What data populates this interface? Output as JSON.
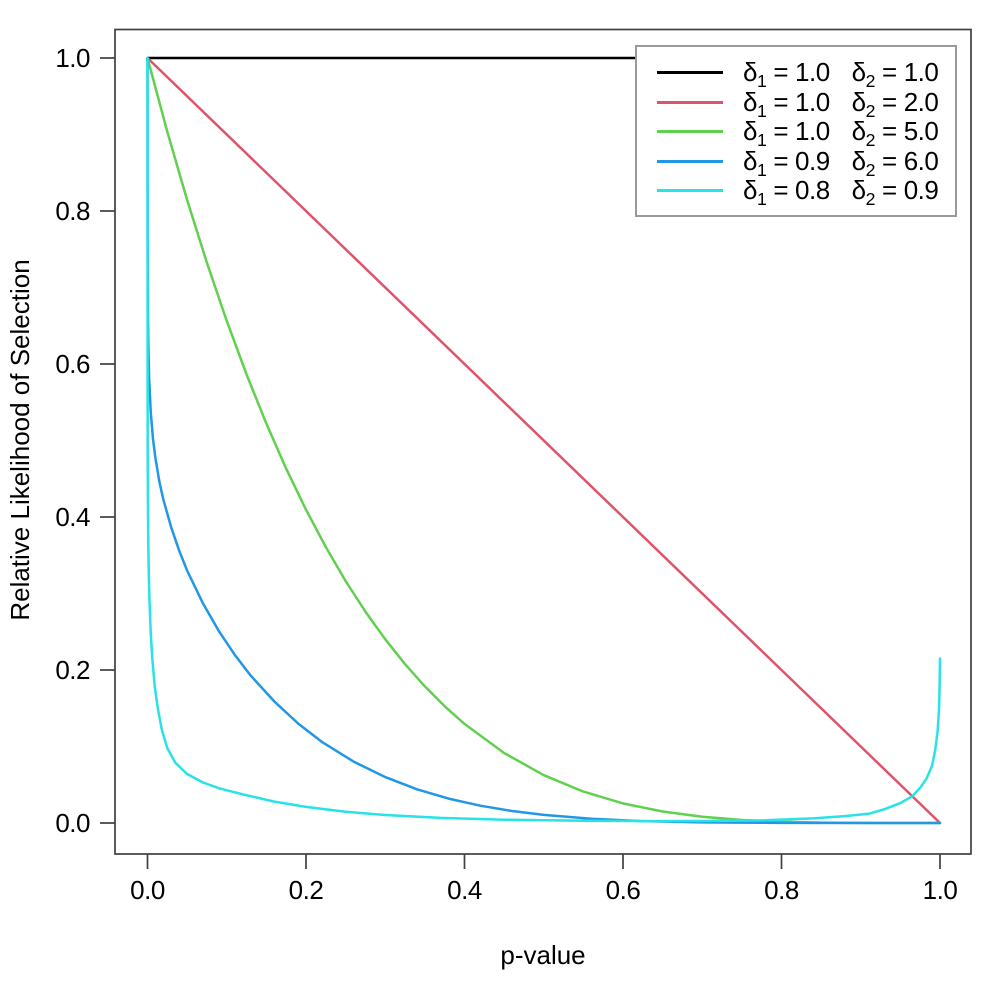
{
  "symbols": {
    "eq": "="
  },
  "chart_data": {
    "type": "line",
    "title": "",
    "xlabel": "p-value",
    "ylabel": "Relative Likelihood of Selection",
    "xlim": [
      0,
      1
    ],
    "ylim": [
      0,
      1
    ],
    "grid": false,
    "legend_position": "top-right",
    "x_ticks": {
      "values": [
        0.0,
        0.2,
        0.4,
        0.6,
        0.8,
        1.0
      ],
      "labels": [
        "0.0",
        "0.2",
        "0.4",
        "0.6",
        "0.8",
        "1.0"
      ]
    },
    "y_ticks": {
      "values": [
        0.0,
        0.2,
        0.4,
        0.6,
        0.8,
        1.0
      ],
      "labels": [
        "0.0",
        "0.2",
        "0.4",
        "0.6",
        "0.8",
        "1.0"
      ]
    },
    "series": [
      {
        "name": "delta1 = 1.0, delta2 = 1.0",
        "color": "#000000",
        "legend": {
          "param1": {
            "sym": "δ",
            "sub": "1",
            "value": "1.0"
          },
          "param2": {
            "sym": "δ",
            "sub": "2",
            "value": "1.0"
          }
        },
        "points": [
          [
            0,
            1.0
          ],
          [
            1,
            1.0
          ]
        ]
      },
      {
        "name": "delta1 = 1.0, delta2 = 2.0",
        "color": "#DF536B",
        "legend": {
          "param1": {
            "sym": "δ",
            "sub": "1",
            "value": "1.0"
          },
          "param2": {
            "sym": "δ",
            "sub": "2",
            "value": "2.0"
          }
        },
        "points": [
          [
            0,
            1.0
          ],
          [
            1,
            0.0
          ]
        ]
      },
      {
        "name": "delta1 = 1.0, delta2 = 5.0",
        "color": "#61D04F",
        "legend": {
          "param1": {
            "sym": "δ",
            "sub": "1",
            "value": "1.0"
          },
          "param2": {
            "sym": "δ",
            "sub": "2",
            "value": "5.0"
          }
        },
        "points": [
          [
            0.0,
            1.0
          ],
          [
            0.025,
            0.9037
          ],
          [
            0.05,
            0.8145
          ],
          [
            0.075,
            0.7324
          ],
          [
            0.1,
            0.6561
          ],
          [
            0.125,
            0.5862
          ],
          [
            0.15,
            0.522
          ],
          [
            0.175,
            0.4632
          ],
          [
            0.2,
            0.4096
          ],
          [
            0.225,
            0.3608
          ],
          [
            0.25,
            0.3164
          ],
          [
            0.275,
            0.2763
          ],
          [
            0.3,
            0.2401
          ],
          [
            0.325,
            0.2076
          ],
          [
            0.35,
            0.1785
          ],
          [
            0.375,
            0.1526
          ],
          [
            0.4,
            0.1296
          ],
          [
            0.45,
            0.0915
          ],
          [
            0.5,
            0.0625
          ],
          [
            0.55,
            0.041
          ],
          [
            0.6,
            0.0256
          ],
          [
            0.65,
            0.015
          ],
          [
            0.7,
            0.0081
          ],
          [
            0.75,
            0.0039
          ],
          [
            0.8,
            0.0016
          ],
          [
            0.85,
            0.0005
          ],
          [
            0.9,
            0.0001
          ],
          [
            0.95,
            0.0
          ],
          [
            1.0,
            0.0
          ]
        ]
      },
      {
        "name": "delta1 = 0.9, delta2 = 6.0",
        "color": "#2297E6",
        "legend": {
          "param1": {
            "sym": "δ",
            "sub": "1",
            "value": "0.9"
          },
          "param2": {
            "sym": "δ",
            "sub": "2",
            "value": "6.0"
          }
        },
        "points": [
          [
            0.0,
            1.0
          ],
          [
            0.0002,
            0.741
          ],
          [
            0.0005,
            0.675
          ],
          [
            0.001,
            0.628
          ],
          [
            0.002,
            0.583
          ],
          [
            0.004,
            0.538
          ],
          [
            0.007,
            0.502
          ],
          [
            0.01,
            0.477
          ],
          [
            0.015,
            0.446
          ],
          [
            0.02,
            0.423
          ],
          [
            0.03,
            0.386
          ],
          [
            0.04,
            0.356
          ],
          [
            0.05,
            0.33
          ],
          [
            0.07,
            0.287
          ],
          [
            0.09,
            0.251
          ],
          [
            0.11,
            0.22
          ],
          [
            0.13,
            0.193
          ],
          [
            0.16,
            0.159
          ],
          [
            0.19,
            0.13
          ],
          [
            0.22,
            0.106
          ],
          [
            0.26,
            0.0803
          ],
          [
            0.3,
            0.06
          ],
          [
            0.34,
            0.0441
          ],
          [
            0.38,
            0.0319
          ],
          [
            0.42,
            0.0226
          ],
          [
            0.46,
            0.0157
          ],
          [
            0.5,
            0.0106
          ],
          [
            0.56,
            0.0055
          ],
          [
            0.62,
            0.0026
          ],
          [
            0.7,
            0.0008
          ],
          [
            0.8,
            0.0001
          ],
          [
            0.9,
            0.0
          ],
          [
            1.0,
            0.0
          ]
        ]
      },
      {
        "name": "delta1 = 0.8, delta2 = 0.9",
        "color": "#28E2E5",
        "legend": {
          "param1": {
            "sym": "δ",
            "sub": "1",
            "value": "0.8"
          },
          "param2": {
            "sym": "δ",
            "sub": "2",
            "value": "0.9"
          }
        },
        "points": [
          [
            0.0,
            1.0
          ],
          [
            0.0001,
            0.6
          ],
          [
            0.0003,
            0.48
          ],
          [
            0.0006,
            0.41
          ],
          [
            0.001,
            0.365
          ],
          [
            0.0016,
            0.325
          ],
          [
            0.0025,
            0.29
          ],
          [
            0.004,
            0.25
          ],
          [
            0.006,
            0.215
          ],
          [
            0.009,
            0.18
          ],
          [
            0.013,
            0.15
          ],
          [
            0.018,
            0.122
          ],
          [
            0.025,
            0.098
          ],
          [
            0.035,
            0.079
          ],
          [
            0.05,
            0.064
          ],
          [
            0.07,
            0.053
          ],
          [
            0.09,
            0.0455
          ],
          [
            0.12,
            0.0375
          ],
          [
            0.16,
            0.028
          ],
          [
            0.2,
            0.021
          ],
          [
            0.25,
            0.0147
          ],
          [
            0.3,
            0.0105
          ],
          [
            0.37,
            0.0067
          ],
          [
            0.45,
            0.0043
          ],
          [
            0.55,
            0.003
          ],
          [
            0.63,
            0.0025
          ],
          [
            0.7,
            0.0026
          ],
          [
            0.78,
            0.0035
          ],
          [
            0.84,
            0.006
          ],
          [
            0.88,
            0.009
          ],
          [
            0.91,
            0.012
          ],
          [
            0.93,
            0.018
          ],
          [
            0.95,
            0.026
          ],
          [
            0.965,
            0.035
          ],
          [
            0.975,
            0.046
          ],
          [
            0.983,
            0.058
          ],
          [
            0.99,
            0.075
          ],
          [
            0.994,
            0.095
          ],
          [
            0.997,
            0.12
          ],
          [
            0.9987,
            0.148
          ],
          [
            0.9994,
            0.172
          ],
          [
            0.9998,
            0.196
          ],
          [
            1.0,
            0.215
          ]
        ]
      }
    ]
  }
}
